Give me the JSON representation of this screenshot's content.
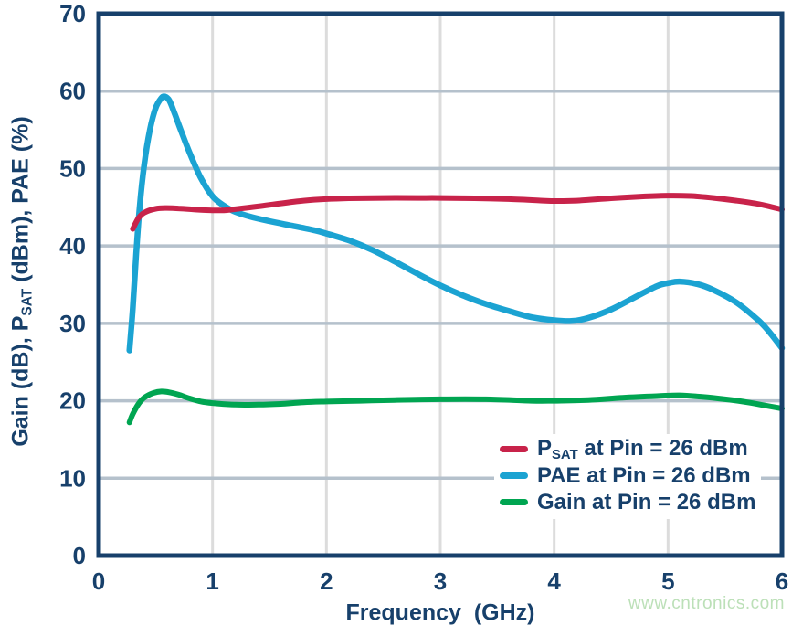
{
  "figure": {
    "watermark": "www.cntronics.com"
  },
  "colors": {
    "text": "#17406B",
    "axis_frame": "#17406B",
    "grid_horizontal": "#B5C1CC",
    "grid_vertical": "#DCDCDC",
    "watermark": "#BCE0B8",
    "psat": "#C8234A",
    "pae": "#1BA3D2",
    "gain": "#00A551"
  },
  "chart_data": {
    "type": "line",
    "title": "",
    "xlabel": "Frequency  (GHz)",
    "ylabel": "Gain (dB), P_SAT (dBm), PAE (%)",
    "ylabel_parts": [
      {
        "t": "Gain (dB), P"
      },
      {
        "t": "SAT",
        "sub": true
      },
      {
        "t": " (dBm), PAE (%)"
      }
    ],
    "xlim": [
      0,
      6
    ],
    "ylim": [
      0,
      70
    ],
    "xticks": [
      "0",
      "1",
      "2",
      "3",
      "4",
      "5",
      "6"
    ],
    "yticks": [
      "0",
      "10",
      "20",
      "30",
      "40",
      "50",
      "60",
      "70"
    ],
    "grid": true,
    "legend_position": "lower right",
    "series": [
      {
        "name": "psat",
        "label": "P_SAT at Pin = 26 dBm",
        "label_parts": [
          {
            "t": "P"
          },
          {
            "t": "SAT",
            "sub": true
          },
          {
            "t": " at Pin = 26 dBm"
          }
        ],
        "color_key": "psat",
        "stroke_width": 6,
        "points": [
          [
            0.3,
            42.2
          ],
          [
            0.35,
            43.6
          ],
          [
            0.4,
            44.3
          ],
          [
            0.5,
            44.8
          ],
          [
            0.6,
            44.9
          ],
          [
            0.7,
            44.85
          ],
          [
            0.8,
            44.75
          ],
          [
            0.9,
            44.65
          ],
          [
            1.0,
            44.6
          ],
          [
            1.1,
            44.6
          ],
          [
            1.2,
            44.75
          ],
          [
            1.4,
            45.1
          ],
          [
            1.6,
            45.5
          ],
          [
            1.8,
            45.85
          ],
          [
            2.0,
            46.05
          ],
          [
            2.2,
            46.15
          ],
          [
            2.5,
            46.2
          ],
          [
            2.8,
            46.2
          ],
          [
            3.0,
            46.2
          ],
          [
            3.3,
            46.15
          ],
          [
            3.6,
            46.05
          ],
          [
            3.9,
            45.85
          ],
          [
            4.0,
            45.8
          ],
          [
            4.2,
            45.85
          ],
          [
            4.5,
            46.15
          ],
          [
            4.8,
            46.4
          ],
          [
            5.0,
            46.5
          ],
          [
            5.2,
            46.45
          ],
          [
            5.4,
            46.2
          ],
          [
            5.6,
            45.85
          ],
          [
            5.8,
            45.4
          ],
          [
            6.0,
            44.7
          ]
        ]
      },
      {
        "name": "pae",
        "label": "PAE at Pin = 26 dBm",
        "label_parts": [
          {
            "t": "PAE at Pin = 26 dBm"
          }
        ],
        "color_key": "pae",
        "stroke_width": 6.5,
        "points": [
          [
            0.27,
            26.5
          ],
          [
            0.3,
            32.0
          ],
          [
            0.33,
            39.0
          ],
          [
            0.36,
            45.0
          ],
          [
            0.4,
            50.5
          ],
          [
            0.45,
            55.0
          ],
          [
            0.5,
            57.8
          ],
          [
            0.55,
            59.1
          ],
          [
            0.58,
            59.3
          ],
          [
            0.62,
            58.8
          ],
          [
            0.67,
            57.0
          ],
          [
            0.72,
            55.0
          ],
          [
            0.8,
            52.0
          ],
          [
            0.9,
            48.7
          ],
          [
            1.0,
            46.4
          ],
          [
            1.1,
            45.2
          ],
          [
            1.2,
            44.4
          ],
          [
            1.35,
            43.7
          ],
          [
            1.5,
            43.2
          ],
          [
            1.7,
            42.6
          ],
          [
            1.9,
            42.0
          ],
          [
            2.0,
            41.6
          ],
          [
            2.2,
            40.7
          ],
          [
            2.4,
            39.5
          ],
          [
            2.6,
            38.0
          ],
          [
            2.8,
            36.4
          ],
          [
            3.0,
            34.9
          ],
          [
            3.2,
            33.6
          ],
          [
            3.4,
            32.5
          ],
          [
            3.6,
            31.6
          ],
          [
            3.8,
            30.8
          ],
          [
            4.0,
            30.4
          ],
          [
            4.15,
            30.3
          ],
          [
            4.3,
            30.7
          ],
          [
            4.5,
            31.8
          ],
          [
            4.7,
            33.3
          ],
          [
            4.9,
            34.8
          ],
          [
            5.0,
            35.2
          ],
          [
            5.1,
            35.4
          ],
          [
            5.25,
            35.1
          ],
          [
            5.4,
            34.3
          ],
          [
            5.6,
            32.7
          ],
          [
            5.8,
            30.3
          ],
          [
            5.9,
            28.7
          ],
          [
            6.0,
            26.8
          ]
        ]
      },
      {
        "name": "gain",
        "label": "Gain at Pin = 26 dBm",
        "label_parts": [
          {
            "t": "Gain at Pin = 26 dBm"
          }
        ],
        "color_key": "gain",
        "stroke_width": 6,
        "points": [
          [
            0.27,
            17.2
          ],
          [
            0.3,
            18.3
          ],
          [
            0.35,
            19.6
          ],
          [
            0.4,
            20.4
          ],
          [
            0.48,
            21.0
          ],
          [
            0.55,
            21.2
          ],
          [
            0.62,
            21.1
          ],
          [
            0.7,
            20.8
          ],
          [
            0.8,
            20.3
          ],
          [
            0.9,
            19.9
          ],
          [
            1.0,
            19.7
          ],
          [
            1.2,
            19.5
          ],
          [
            1.4,
            19.5
          ],
          [
            1.6,
            19.6
          ],
          [
            1.8,
            19.8
          ],
          [
            2.0,
            19.9
          ],
          [
            2.3,
            20.0
          ],
          [
            2.6,
            20.1
          ],
          [
            3.0,
            20.2
          ],
          [
            3.4,
            20.2
          ],
          [
            3.8,
            20.0
          ],
          [
            4.0,
            20.0
          ],
          [
            4.3,
            20.1
          ],
          [
            4.6,
            20.4
          ],
          [
            4.9,
            20.6
          ],
          [
            5.1,
            20.7
          ],
          [
            5.3,
            20.5
          ],
          [
            5.5,
            20.2
          ],
          [
            5.7,
            19.8
          ],
          [
            5.85,
            19.4
          ],
          [
            6.0,
            19.0
          ]
        ]
      }
    ]
  }
}
